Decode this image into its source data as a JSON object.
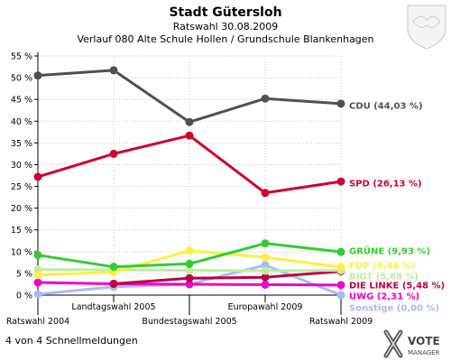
{
  "header": {
    "title": "Stadt Gütersloh",
    "subtitle1": "Ratswahl 30.08.2009",
    "subtitle2": "Verlauf 080 Alte Schule Hollen / Grundschule Blankenhagen"
  },
  "footer": {
    "status": "4 von 4 Schnellmeldungen"
  },
  "logo": {
    "line1": "VOTE",
    "line2": "MANAGER"
  },
  "chart_data": {
    "type": "line",
    "categories": [
      "Ratswahl 2004",
      "Landtagswahl 2005",
      "Bundestagswahl 2005",
      "Europawahl 2009",
      "Ratswahl 2009"
    ],
    "ylim": [
      0,
      55
    ],
    "yticks": [
      "0 %",
      "5 %",
      "10 %",
      "15 %",
      "20 %",
      "25 %",
      "30 %",
      "35 %",
      "40 %",
      "45 %",
      "50 %",
      "55 %"
    ],
    "grid": true,
    "series": [
      {
        "name": "CDU",
        "label": "CDU (44,03 %)",
        "color": "#505050",
        "values": [
          50.5,
          51.7,
          39.8,
          45.2,
          44.03
        ]
      },
      {
        "name": "SPD",
        "label": "SPD (26,13 %)",
        "color": "#cc0033",
        "values": [
          27.2,
          32.5,
          36.7,
          23.5,
          26.13
        ]
      },
      {
        "name": "GRÜNE",
        "label": "GRÜNE (9,93 %)",
        "color": "#33cc33",
        "values": [
          9.2,
          6.5,
          7.2,
          11.9,
          9.93
        ]
      },
      {
        "name": "FDP",
        "label": "FDP (6,44 %)",
        "color": "#ffee44",
        "values": [
          4.6,
          5.3,
          10.2,
          8.7,
          6.44
        ]
      },
      {
        "name": "BIGT",
        "label": "BIGT (5,68 %)",
        "color": "#bbeea0",
        "values": [
          5.9,
          5.8,
          5.7,
          5.6,
          5.68
        ]
      },
      {
        "name": "DIE LINKE",
        "label": "DIE LINKE (5,48 %)",
        "color": "#bb0044",
        "values": [
          null,
          2.6,
          3.9,
          4.1,
          5.48
        ]
      },
      {
        "name": "UWG",
        "label": "UWG (2,31 %)",
        "color": "#ee00cc",
        "values": [
          2.9,
          2.6,
          2.5,
          2.4,
          2.31
        ]
      },
      {
        "name": "Sonstige",
        "label": "Sonstige (0,00 %)",
        "color": "#aabbee",
        "values": [
          0.2,
          1.9,
          2.5,
          6.9,
          0.0
        ]
      }
    ]
  }
}
